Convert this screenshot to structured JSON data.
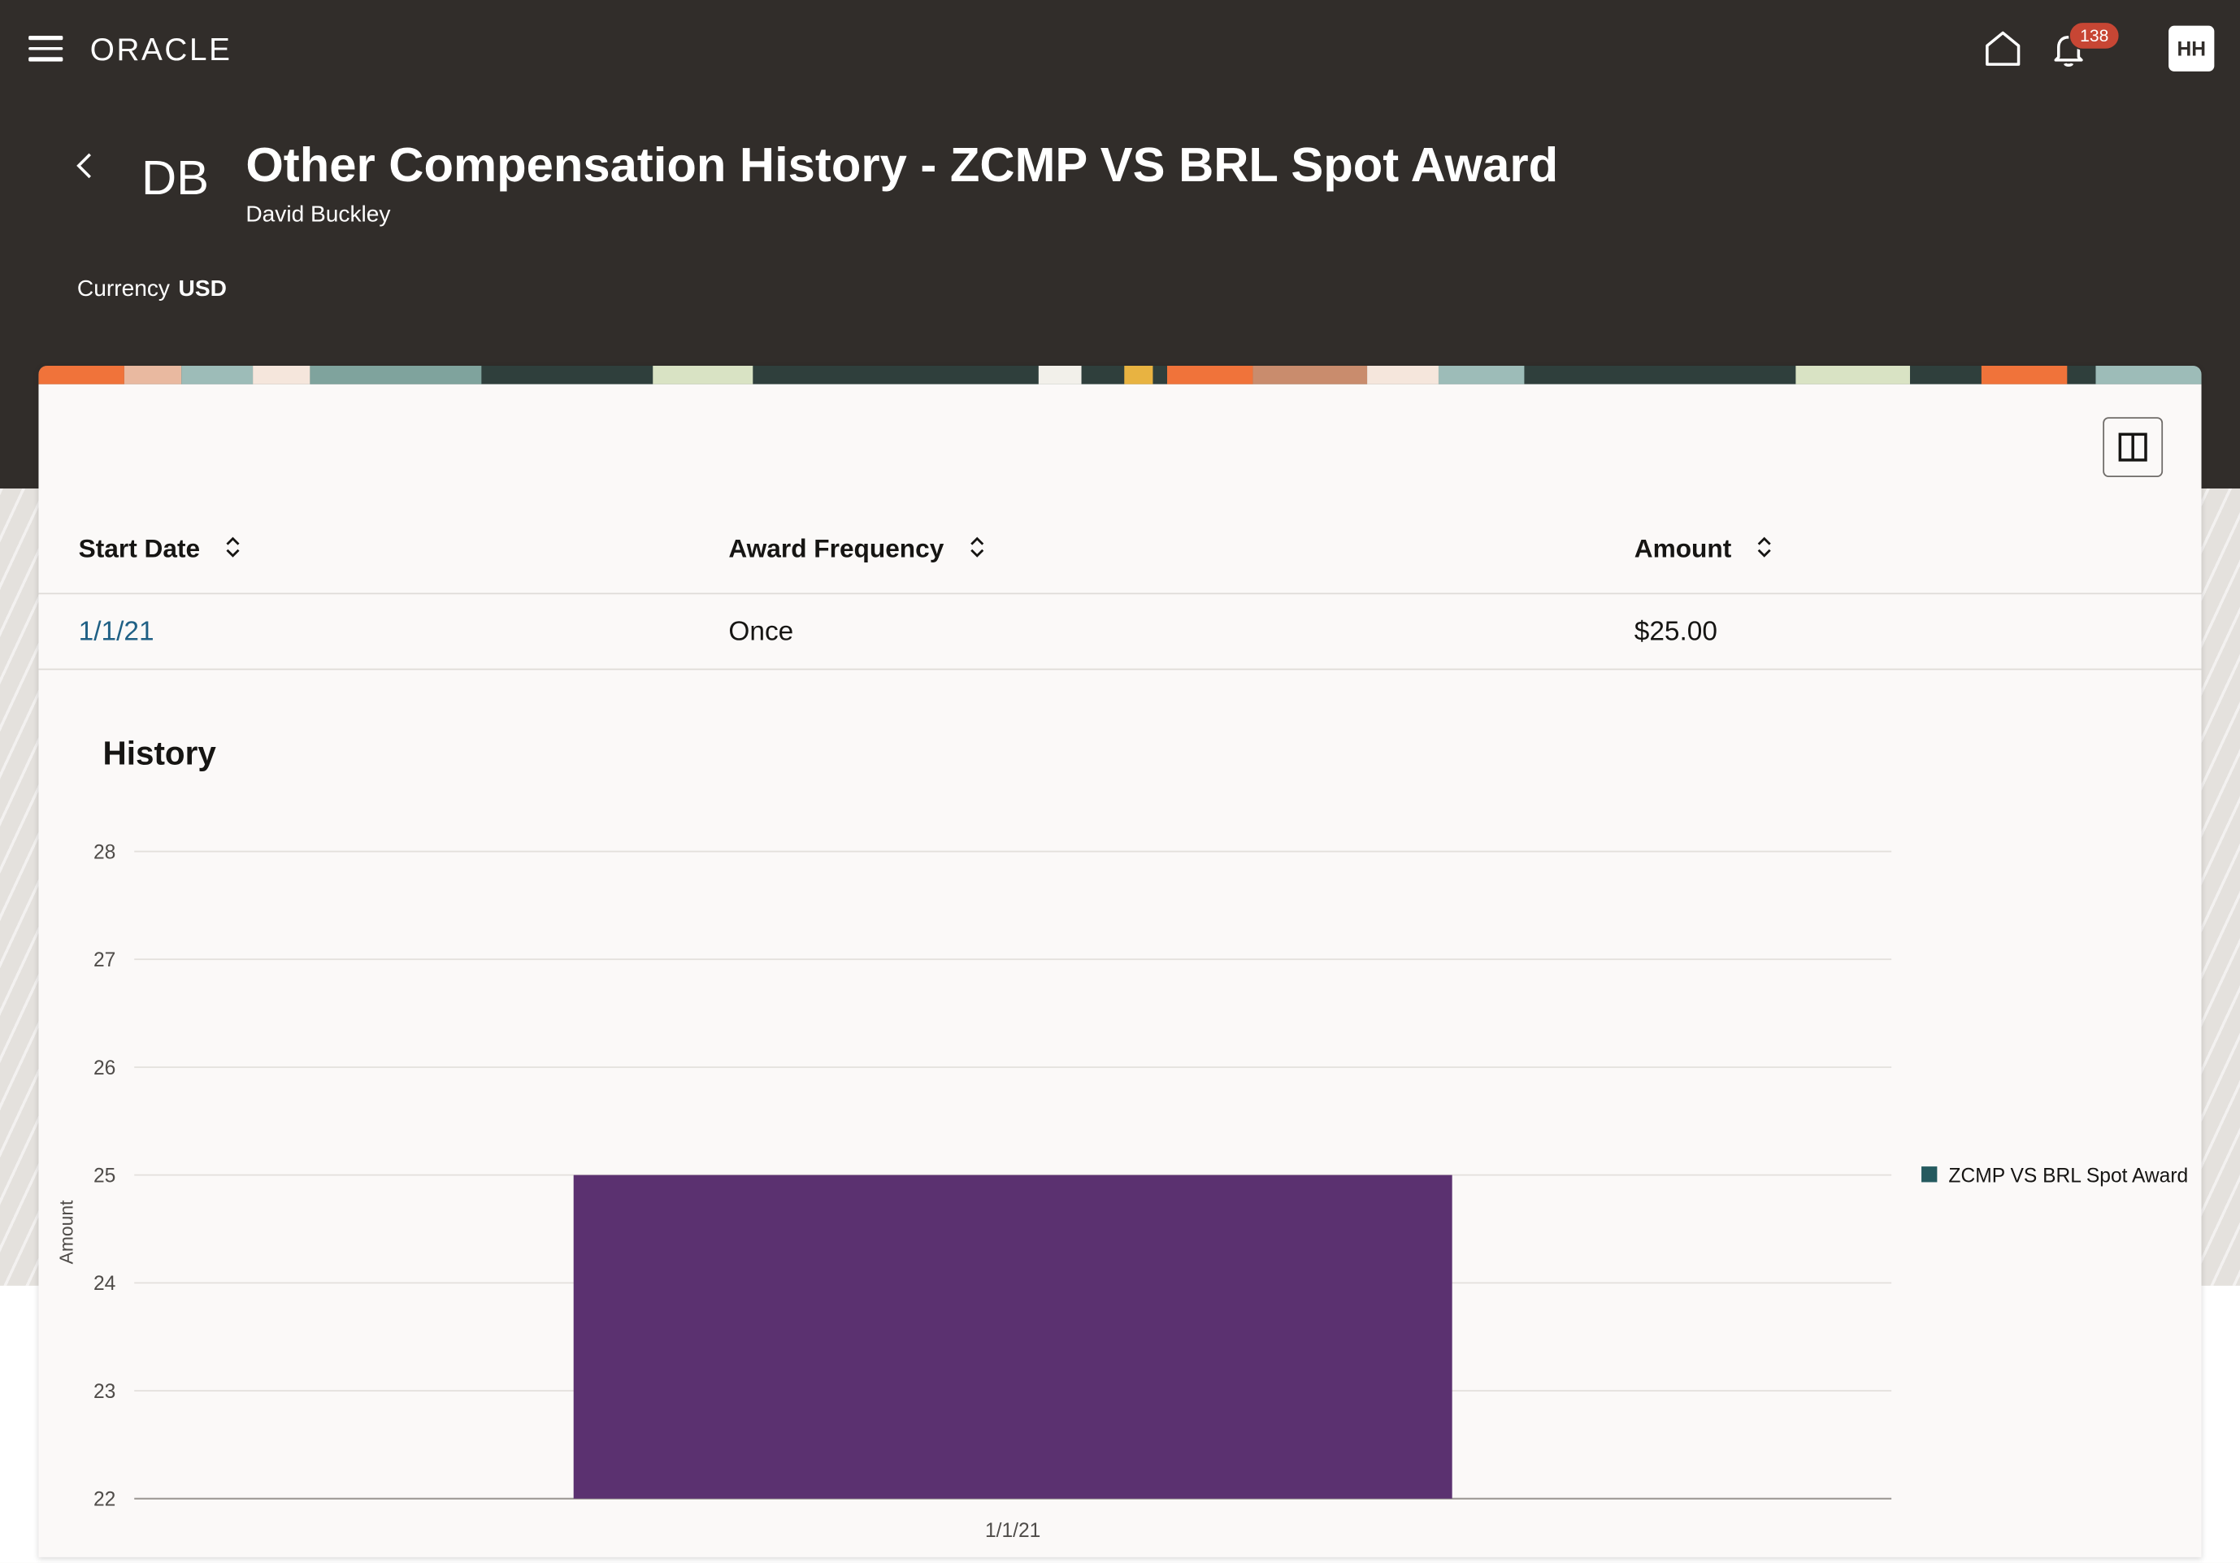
{
  "topbar": {
    "logo": "ORACLE",
    "notification_count": "138",
    "user_initials": "HH"
  },
  "header": {
    "initials": "DB",
    "title": "Other Compensation History - ZCMP VS BRL Spot Award",
    "subtitle": "David Buckley",
    "currency_label": "Currency",
    "currency_value": "USD"
  },
  "table": {
    "columns": [
      "Start Date",
      "Award Frequency",
      "Amount"
    ],
    "rows": [
      {
        "start_date": "1/1/21",
        "frequency": "Once",
        "amount": "$25.00"
      }
    ]
  },
  "history": {
    "title": "History"
  },
  "colors": {
    "header_bg": "#312d2a",
    "bar": "#5b3170",
    "legend_marker": "#255a5f",
    "link": "#1f6085",
    "badge": "#c74634"
  },
  "chart_data": {
    "type": "bar",
    "categories": [
      "1/1/21"
    ],
    "series": [
      {
        "name": "ZCMP VS BRL Spot Award",
        "values": [
          25
        ]
      }
    ],
    "ylabel": "Amount",
    "xlabel": "",
    "ylim": [
      22,
      28
    ],
    "yticks": [
      22,
      23,
      24,
      25,
      26,
      27,
      28
    ],
    "grid": true,
    "legend_position": "right"
  }
}
